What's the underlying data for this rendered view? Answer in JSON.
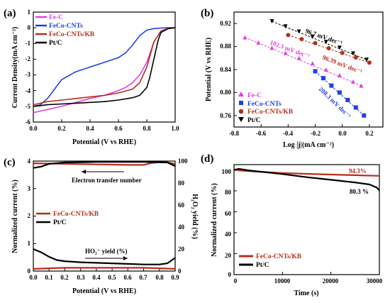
{
  "chart_data": [
    {
      "panel": "(a)",
      "type": "line",
      "xlabel": "Potential (V vs RHE)",
      "ylabel": "Current Density(mA cm⁻²)",
      "xlim": [
        0,
        1.0
      ],
      "ylim": [
        -6,
        1
      ],
      "xticks": [
        "0.0",
        "0.2",
        "0.4",
        "0.6",
        "0.8",
        "1.0"
      ],
      "yticks": [
        "1",
        "0",
        "-1",
        "-2",
        "-3",
        "-4",
        "-5",
        "-6"
      ],
      "legend_position": "top-left",
      "series": [
        {
          "name": "Fe-C",
          "color": "#e040e0",
          "x": [
            0,
            0.05,
            0.1,
            0.2,
            0.3,
            0.4,
            0.5,
            0.6,
            0.65,
            0.7,
            0.75,
            0.8,
            0.85,
            0.9,
            0.95,
            1.0
          ],
          "y": [
            -5.4,
            -5.3,
            -5.2,
            -5.0,
            -4.75,
            -4.5,
            -4.3,
            -4.0,
            -3.8,
            -3.5,
            -3.0,
            -2.2,
            -0.9,
            -0.2,
            -0.05,
            0
          ]
        },
        {
          "name": "FeCo-CNTs",
          "color": "#2040e0",
          "x": [
            0,
            0.05,
            0.1,
            0.15,
            0.2,
            0.3,
            0.4,
            0.5,
            0.6,
            0.65,
            0.7,
            0.75,
            0.8,
            0.85,
            0.9,
            0.95,
            1.0
          ],
          "y": [
            -5.0,
            -4.9,
            -4.5,
            -3.9,
            -3.3,
            -2.8,
            -2.5,
            -2.2,
            -1.9,
            -1.6,
            -1.1,
            -0.5,
            -0.15,
            -0.05,
            -0.02,
            0,
            0
          ]
        },
        {
          "name": "FeCo-CNTs/KB",
          "color": "#b5301c",
          "x": [
            0,
            0.05,
            0.1,
            0.2,
            0.3,
            0.4,
            0.5,
            0.6,
            0.7,
            0.75,
            0.8,
            0.85,
            0.9,
            0.95,
            1.0
          ],
          "y": [
            -4.9,
            -4.8,
            -4.7,
            -4.6,
            -4.5,
            -4.4,
            -4.3,
            -4.15,
            -3.9,
            -3.5,
            -2.5,
            -0.9,
            -0.2,
            -0.05,
            0
          ]
        },
        {
          "name": "Pt/C",
          "color": "#000000",
          "x": [
            0,
            0.05,
            0.1,
            0.2,
            0.3,
            0.4,
            0.5,
            0.6,
            0.7,
            0.75,
            0.8,
            0.82,
            0.85,
            0.88,
            0.9,
            0.95,
            1.0
          ],
          "y": [
            -5.0,
            -4.95,
            -4.9,
            -4.85,
            -4.8,
            -4.75,
            -4.7,
            -4.6,
            -4.45,
            -4.3,
            -3.8,
            -3.2,
            -2.0,
            -0.8,
            -0.3,
            -0.05,
            0
          ]
        }
      ]
    },
    {
      "panel": "(b)",
      "type": "scatter",
      "xlabel": "Log |j|(mA cm⁻²)",
      "ylabel": "Potential (V vs RHE)",
      "xlim": [
        -0.8,
        0.3
      ],
      "ylim": [
        0.74,
        0.94
      ],
      "xticks": [
        "-0.8",
        "-0.6",
        "-0.4",
        "-0.2",
        "0.0",
        "0.2"
      ],
      "yticks": [
        "0.92",
        "0.88",
        "0.84",
        "0.80",
        "0.76"
      ],
      "legend_position": "bottom-left",
      "series": [
        {
          "name": "Fe-C",
          "color": "#e040e0",
          "marker": "triangle-up",
          "x": [
            -0.72,
            -0.62,
            -0.52,
            -0.42,
            -0.32,
            -0.22,
            -0.12,
            -0.02,
            0.08,
            0.14
          ],
          "y": [
            0.896,
            0.887,
            0.878,
            0.869,
            0.86,
            0.851,
            0.84,
            0.83,
            0.819,
            0.812
          ]
        },
        {
          "name": "FeCo-CNTs",
          "color": "#2040e0",
          "marker": "square",
          "x": [
            -0.2,
            -0.14,
            -0.08,
            -0.02,
            0.04,
            0.1,
            0.16
          ],
          "y": [
            0.837,
            0.825,
            0.812,
            0.8,
            0.787,
            0.774,
            0.76
          ]
        },
        {
          "name": "FeCo-CNTs/KB",
          "color": "#b5301c",
          "marker": "circle",
          "x": [
            -0.4,
            -0.3,
            -0.2,
            -0.1,
            0.0,
            0.1,
            0.2
          ],
          "y": [
            0.9,
            0.893,
            0.886,
            0.877,
            0.869,
            0.861,
            0.852
          ]
        },
        {
          "name": "Pt/C",
          "color": "#000000",
          "marker": "triangle-down",
          "x": [
            -0.52,
            -0.42,
            -0.32,
            -0.22,
            -0.12,
            -0.02,
            0.08,
            0.18
          ],
          "y": [
            0.924,
            0.915,
            0.906,
            0.897,
            0.888,
            0.878,
            0.868,
            0.857
          ]
        }
      ],
      "annotations": [
        {
          "text": "96.7 mV dec⁻¹",
          "color": "#000000"
        },
        {
          "text": "102.3 mV dec⁻¹",
          "color": "#e040e0"
        },
        {
          "text": "96.39 mV dec⁻¹",
          "color": "#b5301c"
        },
        {
          "text": "208.3 mV dec⁻¹",
          "color": "#2040e0"
        }
      ]
    },
    {
      "panel": "(c)",
      "type": "line",
      "xlabel": "Potential (V vs RHE)",
      "ylabel": "Normalized current (%)",
      "ylabel_right": "H₂O₂ yield (%)",
      "xlim": [
        0,
        0.9
      ],
      "ylim": [
        0,
        4
      ],
      "ylim_right": [
        0,
        100
      ],
      "xticks": [
        "0.0",
        "0.1",
        "0.2",
        "0.3",
        "0.4",
        "0.5",
        "0.6",
        "0.7",
        "0.8",
        "0.9"
      ],
      "yticks": [
        "4",
        "3",
        "2",
        "1",
        "0"
      ],
      "yticks_right": [
        "100",
        "80",
        "60",
        "40",
        "20",
        "0"
      ],
      "legend_position": "center-left",
      "series": [
        {
          "name": "FeCo-CNTs/KB",
          "color": "#b5301c",
          "quantity": "electron transfer number",
          "x": [
            0,
            0.1,
            0.2,
            0.3,
            0.4,
            0.5,
            0.6,
            0.7,
            0.75,
            0.8,
            0.85,
            0.9
          ],
          "y": [
            3.92,
            3.91,
            3.9,
            3.89,
            3.88,
            3.87,
            3.86,
            3.86,
            3.93,
            3.96,
            3.95,
            3.9
          ]
        },
        {
          "name": "Pt/C",
          "color": "#000000",
          "quantity": "electron transfer number",
          "x": [
            0,
            0.05,
            0.1,
            0.2,
            0.3,
            0.4,
            0.5,
            0.6,
            0.7,
            0.8,
            0.85,
            0.9
          ],
          "y": [
            3.75,
            3.8,
            3.9,
            3.95,
            3.96,
            3.97,
            3.97,
            3.97,
            3.97,
            3.96,
            3.95,
            3.82
          ]
        },
        {
          "name": "FeCo-CNTs/KB",
          "color": "#b5301c",
          "quantity": "HO2- yield",
          "axis": "right",
          "x": [
            0,
            0.1,
            0.2,
            0.3,
            0.4,
            0.5,
            0.6,
            0.7,
            0.8,
            0.9
          ],
          "y": [
            2,
            2.5,
            3,
            3,
            3,
            3,
            3,
            3,
            2.5,
            2
          ]
        },
        {
          "name": "Pt/C",
          "color": "#000000",
          "quantity": "HO2- yield",
          "axis": "right",
          "x": [
            0,
            0.05,
            0.1,
            0.15,
            0.2,
            0.3,
            0.4,
            0.5,
            0.6,
            0.7,
            0.8,
            0.85,
            0.9
          ],
          "y": [
            20,
            17,
            13,
            10,
            9,
            8,
            7.5,
            7,
            6.5,
            6,
            6,
            7,
            12
          ]
        }
      ],
      "annotations": [
        {
          "text": "Electron transfer number"
        },
        {
          "text": "HO₂⁻ yield (%)"
        }
      ]
    },
    {
      "panel": "(d)",
      "type": "line",
      "xlabel": "Time (s)",
      "ylabel": "Normalized current (%)",
      "xlim": [
        0,
        30000
      ],
      "ylim": [
        0,
        105
      ],
      "xticks": [
        "0",
        "10000",
        "20000",
        "30000"
      ],
      "yticks": [
        "100",
        "80",
        "60",
        "40",
        "20",
        "0"
      ],
      "legend_position": "bottom-left",
      "series": [
        {
          "name": "FeCo-CNTs/KB",
          "color": "#b5301c",
          "x": [
            0,
            2000,
            5000,
            10000,
            15000,
            20000,
            25000,
            30000
          ],
          "y": [
            100,
            99.2,
            98.2,
            97.0,
            96.2,
            95.5,
            94.9,
            94.3
          ]
        },
        {
          "name": "Pt/C",
          "color": "#000000",
          "x": [
            0,
            1000,
            3000,
            5000,
            10000,
            15000,
            20000,
            25000,
            28000,
            29500,
            30000
          ],
          "y": [
            100,
            101,
            99.5,
            98.5,
            96,
            93,
            90.5,
            88,
            86,
            83,
            80.3
          ]
        }
      ],
      "annotations": [
        {
          "text": "94.3%",
          "color": "#b5301c"
        },
        {
          "text": "80.3 %",
          "color": "#000000"
        }
      ]
    }
  ]
}
